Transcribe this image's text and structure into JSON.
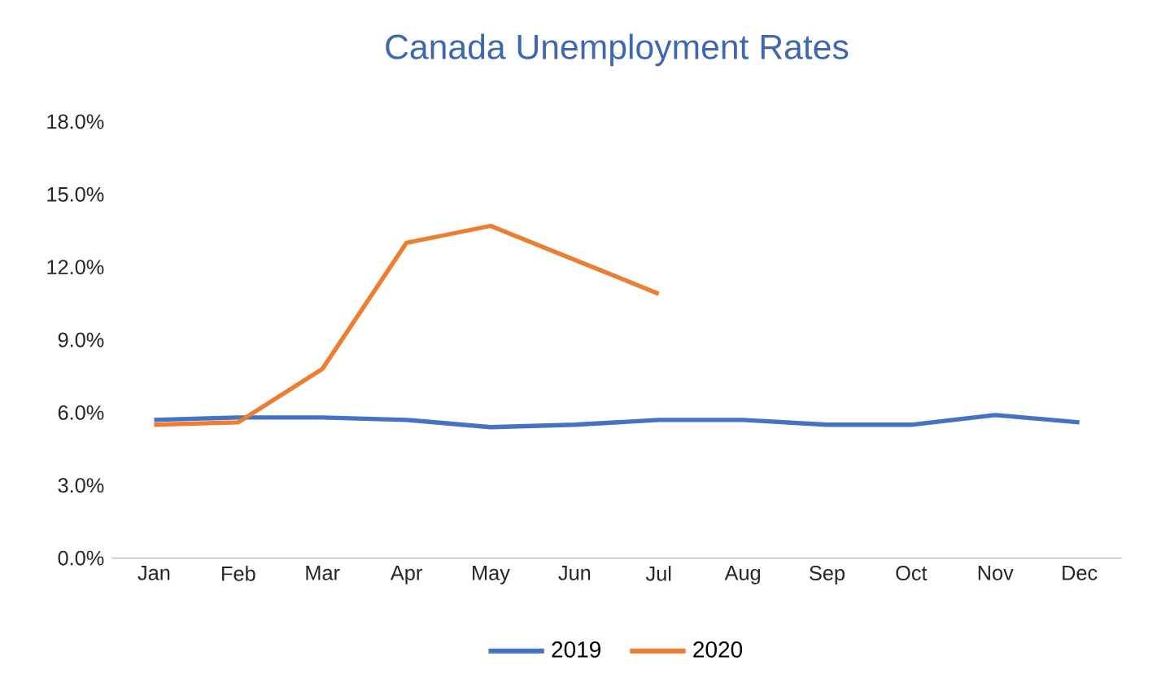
{
  "chart_data": {
    "type": "line",
    "title": "Canada Unemployment Rates",
    "categories": [
      "Jan",
      "Feb",
      "Mar",
      "Apr",
      "May",
      "Jun",
      "Jul",
      "Aug",
      "Sep",
      "Oct",
      "Nov",
      "Dec"
    ],
    "series": [
      {
        "name": "2019",
        "color": "#4472c4",
        "values": [
          5.7,
          5.8,
          5.8,
          5.7,
          5.4,
          5.5,
          5.7,
          5.7,
          5.5,
          5.5,
          5.9,
          5.6
        ]
      },
      {
        "name": "2020",
        "color": "#ed7d31",
        "values": [
          5.5,
          5.6,
          7.8,
          13.0,
          13.7,
          12.3,
          10.9,
          null,
          null,
          null,
          null,
          null
        ]
      }
    ],
    "ylim": [
      0,
      18
    ],
    "yticks": [
      {
        "value": 0,
        "label": "0.0%"
      },
      {
        "value": 3,
        "label": "3.0%"
      },
      {
        "value": 6,
        "label": "6.0%"
      },
      {
        "value": 9,
        "label": "9.0%"
      },
      {
        "value": 12,
        "label": "12.0%"
      },
      {
        "value": 15,
        "label": "15.0%"
      },
      {
        "value": 18,
        "label": "18.0%"
      }
    ],
    "grid": false,
    "legend": "bottom",
    "marker": "none",
    "line_style": "solid"
  }
}
